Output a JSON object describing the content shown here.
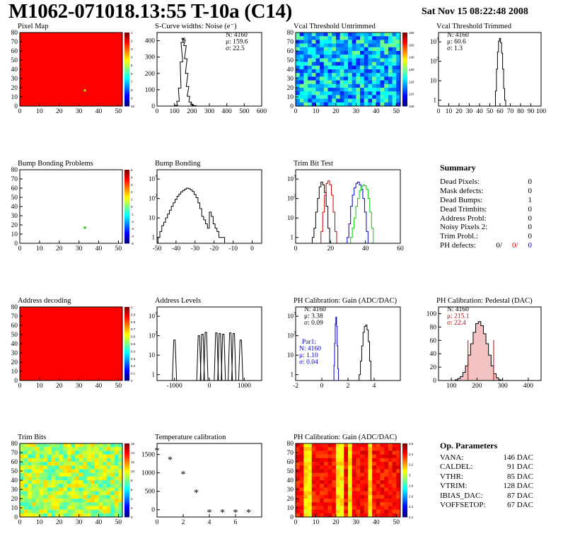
{
  "header": {
    "title": "M1062-071018.13:55 T-10a (C14)",
    "date": "Sat Nov 15 08:22:48 2008"
  },
  "colors": {
    "red": "#cc0000",
    "blue": "#0000cc",
    "green": "#00cc00"
  },
  "chart_data": [
    {
      "type": "heatmap",
      "title": "Pixel Map",
      "xlim": [
        0,
        52
      ],
      "ylim": [
        0,
        80
      ],
      "xticks": [
        0,
        10,
        20,
        30,
        40,
        50
      ],
      "yticks": [
        0,
        10,
        20,
        30,
        40,
        50,
        60,
        70,
        80
      ],
      "colorbar_ticks": [
        1,
        2,
        3,
        4,
        5,
        6,
        7,
        8,
        9,
        10
      ],
      "fill": "uniform-max",
      "highlight": [
        33,
        17
      ]
    },
    {
      "type": "histogram",
      "title": "S-Curve widths: Noise (e⁻)",
      "xlim": [
        0,
        600
      ],
      "ylim": [
        0,
        450
      ],
      "xticks": [
        0,
        100,
        200,
        300,
        400,
        500,
        600
      ],
      "yticks": [
        0,
        100,
        200,
        300,
        400
      ],
      "stats": [
        "N: 4160",
        "μ: 159.6",
        "σ: 22.5"
      ],
      "series": [
        {
          "color": "#000000",
          "x": [
            95,
            110,
            120,
            130,
            140,
            145,
            150,
            155,
            160,
            165,
            170,
            175,
            180,
            190,
            200,
            210,
            220,
            230
          ],
          "values": [
            0,
            5,
            30,
            110,
            270,
            390,
            415,
            405,
            370,
            290,
            200,
            120,
            60,
            25,
            10,
            4,
            2,
            0
          ]
        }
      ]
    },
    {
      "type": "heatmap",
      "title": "Vcal Threshold Untrimmed",
      "xlim": [
        0,
        52
      ],
      "ylim": [
        0,
        80
      ],
      "xticks": [
        0,
        10,
        20,
        30,
        40,
        50
      ],
      "yticks": [
        0,
        10,
        20,
        30,
        40,
        50,
        60,
        70,
        80
      ],
      "colorbar_ticks": [
        160,
        150,
        140,
        130,
        120,
        110,
        100
      ],
      "fill": "blue-noise"
    },
    {
      "type": "histogram",
      "title": "Vcal Threshold Trimmed",
      "xlim": [
        0,
        100
      ],
      "ylim": [
        0.5,
        3000
      ],
      "yscale": "log",
      "xticks": [
        0,
        10,
        20,
        30,
        40,
        50,
        60,
        70,
        80,
        90,
        100
      ],
      "yticks": [
        1,
        10,
        100,
        1000
      ],
      "stats": [
        "N: 4160",
        "μ: 60.6",
        "σ:  1.3"
      ],
      "series": [
        {
          "color": "#000000",
          "x": [
            56,
            57,
            58,
            59,
            60,
            61,
            62,
            63,
            64,
            65
          ],
          "values": [
            3,
            40,
            300,
            1100,
            1500,
            900,
            260,
            40,
            4,
            1
          ]
        }
      ]
    },
    {
      "type": "heatmap",
      "title": "Bump Bonding Problems",
      "xlim": [
        0,
        52
      ],
      "ylim": [
        0,
        80
      ],
      "xticks": [
        0,
        10,
        20,
        30,
        40,
        50
      ],
      "yticks": [
        0,
        10,
        20,
        30,
        40,
        50,
        60,
        70,
        80
      ],
      "colorbar_ticks": [
        5,
        4,
        3,
        2,
        1,
        0,
        -1,
        -2,
        -3,
        -4,
        -5
      ],
      "fill": "empty",
      "highlight": [
        33,
        17
      ]
    },
    {
      "type": "histogram",
      "title": "Bump Bonding",
      "xlim": [
        -50,
        5
      ],
      "ylim": [
        0.5,
        3000
      ],
      "yscale": "log",
      "xticks": [
        -50,
        -40,
        -30,
        -20,
        -10,
        0
      ],
      "yticks": [
        1,
        10,
        100,
        1000
      ],
      "series": [
        {
          "color": "#000000",
          "x": [
            -49,
            -48,
            -47,
            -46,
            -45,
            -44,
            -43,
            -42,
            -41,
            -40,
            -39,
            -38,
            -37,
            -36,
            -35,
            -34,
            -33,
            -32,
            -31,
            -30,
            -29,
            -28,
            -27,
            -26,
            -25,
            -24,
            -23,
            -22,
            -21,
            -20,
            -19,
            -18,
            -17,
            -16,
            -15
          ],
          "values": [
            1,
            2,
            4,
            6,
            10,
            16,
            25,
            40,
            60,
            90,
            130,
            170,
            220,
            260,
            300,
            340,
            320,
            280,
            230,
            160,
            110,
            60,
            30,
            12,
            8,
            5,
            3,
            20,
            12,
            5,
            3,
            2,
            1,
            1,
            1
          ]
        }
      ]
    },
    {
      "type": "histogram",
      "title": "Trim Bit Test",
      "xlim": [
        0,
        60
      ],
      "ylim": [
        0.5,
        3000
      ],
      "yscale": "log",
      "xticks": [
        0,
        20,
        40,
        60
      ],
      "yticks": [
        1,
        10,
        100,
        1000
      ],
      "series": [
        {
          "color": "#000000",
          "x": [
            10,
            11,
            12,
            13,
            14,
            15,
            16,
            17,
            18,
            19
          ],
          "values": [
            1,
            3,
            20,
            100,
            400,
            700,
            500,
            200,
            40,
            3
          ]
        },
        {
          "color": "#cc0000",
          "x": [
            15,
            16,
            17,
            18,
            19,
            20,
            21,
            22,
            23
          ],
          "values": [
            2,
            20,
            150,
            600,
            800,
            500,
            150,
            20,
            2
          ]
        },
        {
          "color": "#0000cc",
          "x": [
            30,
            31,
            32,
            33,
            34,
            35,
            36,
            37,
            38,
            39,
            40,
            41
          ],
          "values": [
            1,
            5,
            40,
            150,
            350,
            600,
            700,
            500,
            300,
            100,
            20,
            2
          ]
        },
        {
          "color": "#00cc00",
          "x": [
            32,
            33,
            34,
            35,
            36,
            37,
            38,
            39,
            40,
            41,
            42,
            43,
            44
          ],
          "values": [
            1,
            3,
            10,
            40,
            100,
            250,
            400,
            500,
            450,
            300,
            100,
            20,
            3
          ]
        }
      ]
    },
    {
      "type": "heatmap",
      "title": "Address decoding",
      "xlim": [
        0,
        52
      ],
      "ylim": [
        0,
        80
      ],
      "xticks": [
        0,
        10,
        20,
        30,
        40,
        50
      ],
      "yticks": [
        0,
        10,
        20,
        30,
        40,
        50,
        60,
        70,
        80
      ],
      "colorbar_ticks": [
        1,
        0.9,
        0.8,
        0.7,
        0.6,
        0.5,
        0.4,
        0.3,
        0.2,
        0.1,
        0
      ],
      "fill": "uniform-max"
    },
    {
      "type": "histogram",
      "title": "Address Levels",
      "xlim": [
        -1500,
        1500
      ],
      "ylim": [
        0.5,
        3000
      ],
      "yscale": "log",
      "xticks": [
        -1000,
        0,
        1000
      ],
      "yticks": [
        1,
        10,
        100,
        1000
      ],
      "series": [
        {
          "color": "#000000",
          "peaks": [
            -1000,
            -300,
            -200,
            -100,
            200,
            300,
            400,
            600,
            700,
            900
          ],
          "heights": [
            60,
            100,
            120,
            150,
            140,
            130,
            120,
            140,
            130,
            60
          ]
        }
      ]
    },
    {
      "type": "histogram",
      "title": "PH Calibration: Gain (ADC/DAC)",
      "xlim": [
        -2,
        6
      ],
      "ylim": [
        0.5,
        3000
      ],
      "yscale": "log",
      "xticks": [
        -2,
        0,
        2,
        4
      ],
      "yticks": [
        1,
        10,
        100,
        1000
      ],
      "stats": [
        "N: 4160",
        "μ: 3.38",
        "σ: 0.09"
      ],
      "stats2": [
        "Par1:",
        "N: 4160",
        "μ: 1.10",
        "σ: 0.04"
      ],
      "series": [
        {
          "color": "#000000",
          "x": [
            2.9,
            3.0,
            3.1,
            3.2,
            3.3,
            3.4,
            3.5,
            3.6,
            3.7
          ],
          "values": [
            1,
            5,
            30,
            150,
            300,
            350,
            200,
            50,
            5
          ]
        },
        {
          "color": "#0000cc",
          "x": [
            0.95,
            1.0,
            1.05,
            1.1,
            1.15,
            1.2,
            1.25
          ],
          "values": [
            3,
            40,
            400,
            900,
            300,
            30,
            2
          ]
        }
      ]
    },
    {
      "type": "histogram",
      "title": "PH Calibration: Pedestal (DAC)",
      "xlim": [
        50,
        450
      ],
      "ylim": [
        0,
        110
      ],
      "xticks": [
        100,
        200,
        300,
        400
      ],
      "yticks": [
        0,
        20,
        40,
        60,
        80,
        100
      ],
      "stats": [
        "N: 4160",
        "μ: 215.1",
        "σ: 22.4"
      ],
      "series": [
        {
          "color": "#000000",
          "x": [
            120,
            130,
            140,
            150,
            160,
            170,
            180,
            190,
            200,
            210,
            220,
            230,
            240,
            250,
            260,
            270,
            280,
            290
          ],
          "values": [
            1,
            3,
            6,
            12,
            22,
            38,
            55,
            72,
            85,
            88,
            82,
            70,
            55,
            38,
            22,
            10,
            4,
            1
          ]
        }
      ],
      "markers": [
        165,
        265
      ]
    },
    {
      "type": "heatmap",
      "title": "Trim Bits",
      "xlim": [
        0,
        52
      ],
      "ylim": [
        0,
        80
      ],
      "xticks": [
        0,
        10,
        20,
        30,
        40,
        50
      ],
      "yticks": [
        0,
        10,
        20,
        30,
        40,
        50,
        60,
        70,
        80
      ],
      "colorbar_ticks": [
        16,
        14,
        12,
        10,
        8,
        6,
        4,
        2,
        0
      ],
      "fill": "green-noise"
    },
    {
      "type": "scatter",
      "title": "Temperature calibration",
      "xlim": [
        0,
        8
      ],
      "ylim": [
        -200,
        1800
      ],
      "xticks": [
        0,
        2,
        4,
        6
      ],
      "yticks": [
        0,
        500,
        1000,
        1500
      ],
      "x": [
        0,
        1,
        2,
        3,
        4,
        5,
        6,
        7
      ],
      "values": [
        1600,
        1350,
        950,
        450,
        -80,
        -80,
        -80,
        -80
      ]
    },
    {
      "type": "heatmap",
      "title": "PH Calibration: Gain (ADC/DAC)",
      "xlim": [
        0,
        52
      ],
      "ylim": [
        0,
        80
      ],
      "xticks": [
        0,
        10,
        20,
        30,
        40,
        50
      ],
      "yticks": [
        0,
        10,
        20,
        30,
        40,
        50,
        60,
        70,
        80
      ],
      "colorbar_ticks": [
        3.6,
        3.4,
        3.2,
        3,
        2.8,
        2.6,
        2.4,
        2.2
      ],
      "fill": "orange-columns"
    }
  ],
  "summary": {
    "title": "Summary",
    "rows": [
      {
        "label": "Dead Pixels:",
        "value": "0"
      },
      {
        "label": "Mask defects:",
        "value": "0"
      },
      {
        "label": "Dead Bumps:",
        "value": "1"
      },
      {
        "label": "Dead Trimbits:",
        "value": "0"
      },
      {
        "label": "Address Probl:",
        "value": "0"
      },
      {
        "label": "Noisy Pixels 2:",
        "value": "0"
      },
      {
        "label": "Trim Probl.:",
        "value": "0"
      }
    ],
    "ph": {
      "label": "PH defects:",
      "v1": "0/",
      "v2": "0/",
      "v3": "0"
    }
  },
  "op_params": {
    "title": "Op. Parameters",
    "rows": [
      {
        "label": "VANA:",
        "value": "146 DAC"
      },
      {
        "label": "CALDEL:",
        "value": "91 DAC"
      },
      {
        "label": "VTHR:",
        "value": "85 DAC"
      },
      {
        "label": "VTRIM:",
        "value": "128 DAC"
      },
      {
        "label": "IBIAS_DAC:",
        "value": "87 DAC"
      },
      {
        "label": "VOFFSETOP:",
        "value": "67 DAC"
      }
    ]
  }
}
